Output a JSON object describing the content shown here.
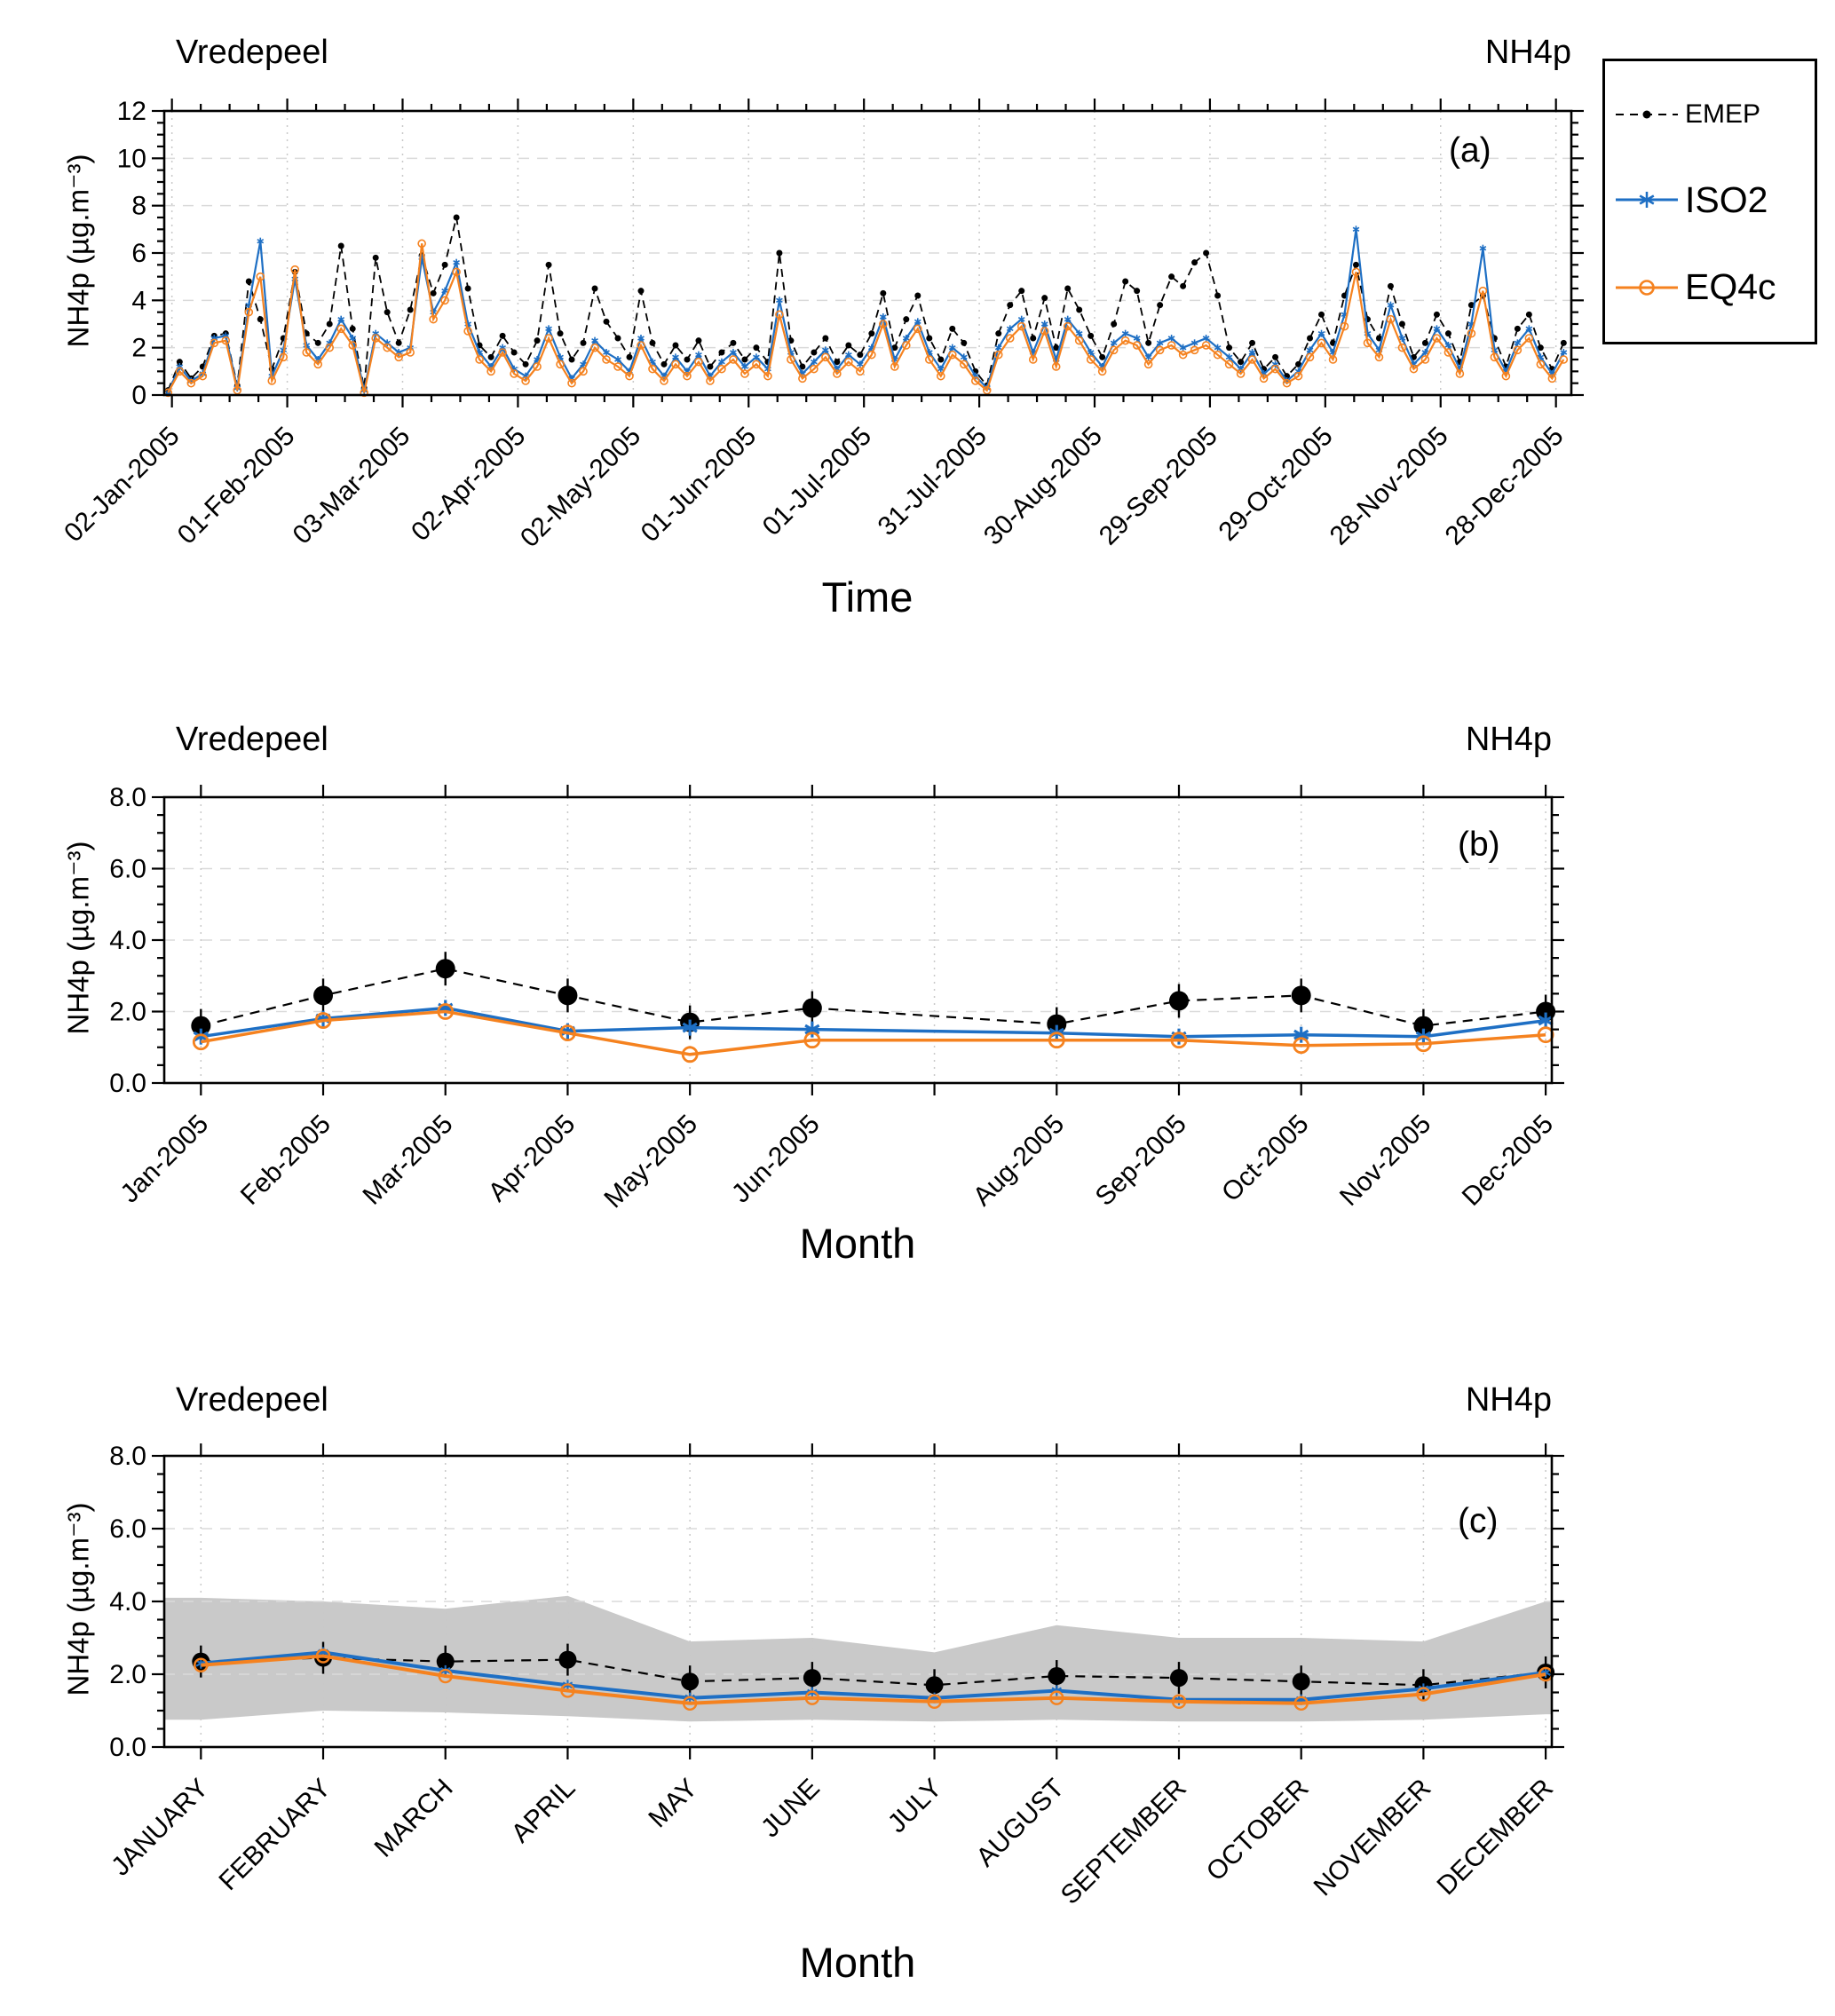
{
  "legend": {
    "entries": [
      {
        "label": "EMEP",
        "color": "#000000",
        "dash": "9 7",
        "marker": "dot"
      },
      {
        "label": "ISO2",
        "color": "#1e6fc4",
        "dash": "",
        "marker": "asterisk"
      },
      {
        "label": "EQ4c",
        "color": "#f5821f",
        "dash": "",
        "marker": "open-circle"
      }
    ]
  },
  "chart_data": [
    {
      "type": "line",
      "id": "a",
      "site": "Vredepeel",
      "species": "NH4p",
      "panel_label": "(a)",
      "xlabel": "Time",
      "ylabel": "NH4p (µg.m⁻³)",
      "xlim": [
        0,
        366
      ],
      "ylim": [
        0,
        12
      ],
      "ytick_major": 2,
      "ytick_minor": 0.5,
      "ydecimals": 0,
      "x_minor_per_interval": 3,
      "hgrid": [
        2,
        4,
        6,
        8,
        10
      ],
      "xticks": [
        {
          "pos": 2,
          "label": "02-Jan-2005"
        },
        {
          "pos": 32,
          "label": "01-Feb-2005"
        },
        {
          "pos": 62,
          "label": "03-Mar-2005"
        },
        {
          "pos": 92,
          "label": "02-Apr-2005"
        },
        {
          "pos": 122,
          "label": "02-May-2005"
        },
        {
          "pos": 152,
          "label": "01-Jun-2005"
        },
        {
          "pos": 182,
          "label": "01-Jul-2005"
        },
        {
          "pos": 212,
          "label": "31-Jul-2005"
        },
        {
          "pos": 242,
          "label": "30-Aug-2005"
        },
        {
          "pos": 272,
          "label": "29-Sep-2005"
        },
        {
          "pos": 302,
          "label": "29-Oct-2005"
        },
        {
          "pos": 332,
          "label": "28-Nov-2005"
        },
        {
          "pos": 362,
          "label": "28-Dec-2005"
        }
      ],
      "series": [
        {
          "name": "EMEP",
          "color": "#000000",
          "dash": "9 6",
          "width": 1.8,
          "marker": "dot",
          "msize": 3.5,
          "day_start": 1,
          "day_step": 3,
          "values": [
            0.2,
            1.4,
            0.7,
            1.2,
            2.5,
            2.6,
            0.4,
            4.8,
            3.2,
            1.1,
            2.4,
            5.2,
            2.6,
            2.2,
            3.0,
            6.3,
            2.8,
            0.3,
            5.8,
            3.5,
            2.2,
            3.6,
            5.9,
            4.3,
            5.5,
            7.5,
            4.5,
            2.1,
            1.6,
            2.5,
            1.8,
            1.3,
            2.3,
            5.5,
            2.6,
            1.5,
            2.2,
            4.5,
            3.1,
            2.4,
            1.6,
            4.4,
            2.2,
            1.3,
            2.1,
            1.5,
            2.3,
            1.2,
            1.8,
            2.2,
            1.5,
            2.0,
            1.4,
            6.0,
            2.3,
            1.2,
            1.8,
            2.4,
            1.4,
            2.1,
            1.7,
            2.6,
            4.3,
            2.0,
            3.2,
            4.2,
            2.4,
            1.5,
            2.8,
            2.2,
            1.0,
            0.4,
            2.6,
            3.8,
            4.4,
            2.4,
            4.1,
            2.0,
            4.5,
            3.6,
            2.5,
            1.6,
            3.0,
            4.8,
            4.4,
            2.2,
            3.8,
            5.0,
            4.6,
            5.6,
            6.0,
            4.2,
            2.0,
            1.4,
            2.2,
            1.1,
            1.6,
            0.8,
            1.3,
            2.4,
            3.4,
            2.2,
            4.2,
            5.5,
            3.2,
            2.4,
            4.6,
            3.0,
            1.6,
            2.2,
            3.4,
            2.6,
            1.4,
            3.8,
            4.2,
            2.4,
            1.2,
            2.8,
            3.4,
            2.0,
            1.1,
            2.2
          ]
        },
        {
          "name": "ISO2",
          "color": "#1e6fc4",
          "dash": "",
          "width": 2.2,
          "marker": "asterisk",
          "msize": 4,
          "day_start": 1,
          "day_step": 3,
          "values": [
            0.1,
            1.2,
            0.6,
            0.9,
            2.4,
            2.5,
            0.3,
            3.8,
            6.5,
            0.8,
            1.9,
            4.9,
            2.1,
            1.5,
            2.2,
            3.2,
            2.4,
            0.2,
            2.6,
            2.2,
            1.8,
            2.0,
            5.8,
            3.5,
            4.4,
            5.6,
            3.0,
            1.8,
            1.2,
            2.0,
            1.1,
            0.8,
            1.5,
            2.8,
            1.6,
            0.7,
            1.3,
            2.3,
            1.8,
            1.5,
            1.0,
            2.4,
            1.4,
            0.8,
            1.6,
            1.0,
            1.7,
            0.8,
            1.4,
            1.8,
            1.2,
            1.6,
            1.1,
            4.0,
            1.8,
            0.9,
            1.4,
            1.9,
            1.1,
            1.7,
            1.3,
            2.0,
            3.3,
            1.5,
            2.4,
            3.1,
            1.8,
            1.1,
            2.0,
            1.6,
            0.8,
            0.3,
            2.0,
            2.8,
            3.2,
            1.8,
            3.0,
            1.5,
            3.2,
            2.6,
            1.8,
            1.2,
            2.2,
            2.6,
            2.4,
            1.6,
            2.2,
            2.4,
            2.0,
            2.2,
            2.4,
            2.0,
            1.6,
            1.1,
            1.8,
            0.9,
            1.3,
            0.6,
            1.0,
            1.9,
            2.6,
            1.8,
            3.4,
            7.0,
            2.6,
            1.9,
            3.8,
            2.4,
            1.3,
            1.8,
            2.8,
            2.1,
            1.1,
            3.0,
            6.2,
            1.9,
            1.0,
            2.2,
            2.8,
            1.6,
            0.9,
            1.8
          ]
        },
        {
          "name": "EQ4c",
          "color": "#f5821f",
          "dash": "",
          "width": 2.2,
          "marker": "ocircle",
          "msize": 4,
          "day_start": 1,
          "day_step": 3,
          "values": [
            0.1,
            1.0,
            0.5,
            0.8,
            2.2,
            2.3,
            0.2,
            3.5,
            5.0,
            0.6,
            1.6,
            5.3,
            1.8,
            1.3,
            2.0,
            2.8,
            2.1,
            0.1,
            2.4,
            2.0,
            1.6,
            1.8,
            6.4,
            3.2,
            4.0,
            5.2,
            2.7,
            1.5,
            1.0,
            1.8,
            0.9,
            0.6,
            1.2,
            2.4,
            1.3,
            0.5,
            1.0,
            2.0,
            1.5,
            1.2,
            0.8,
            2.1,
            1.1,
            0.6,
            1.3,
            0.8,
            1.4,
            0.6,
            1.1,
            1.5,
            0.9,
            1.3,
            0.8,
            3.4,
            1.5,
            0.7,
            1.1,
            1.6,
            0.9,
            1.4,
            1.0,
            1.7,
            3.0,
            1.2,
            2.1,
            2.8,
            1.5,
            0.8,
            1.7,
            1.3,
            0.6,
            0.2,
            1.7,
            2.4,
            2.9,
            1.5,
            2.7,
            1.2,
            2.9,
            2.3,
            1.5,
            1.0,
            1.9,
            2.3,
            2.1,
            1.3,
            1.9,
            2.1,
            1.7,
            1.9,
            2.1,
            1.7,
            1.3,
            0.9,
            1.5,
            0.7,
            1.1,
            0.5,
            0.8,
            1.6,
            2.2,
            1.5,
            2.9,
            5.2,
            2.2,
            1.6,
            3.2,
            2.0,
            1.1,
            1.5,
            2.4,
            1.8,
            0.9,
            2.6,
            4.4,
            1.6,
            0.8,
            1.9,
            2.4,
            1.3,
            0.7,
            1.5
          ]
        }
      ]
    },
    {
      "type": "line",
      "id": "b",
      "site": "Vredepeel",
      "species": "NH4p",
      "panel_label": "(b)",
      "xlabel": "Month",
      "ylabel": "NH4p (µg.m⁻³)",
      "xlim": [
        0.7,
        12.05
      ],
      "ylim": [
        0,
        8
      ],
      "ytick_major": 2,
      "ytick_minor": 0.5,
      "ydecimals": 1,
      "x_minor_per_interval": 0,
      "hgrid": [
        2,
        4,
        6
      ],
      "xticks": [
        {
          "pos": 1,
          "label": "Jan-2005"
        },
        {
          "pos": 2,
          "label": "Feb-2005"
        },
        {
          "pos": 3,
          "label": "Mar-2005"
        },
        {
          "pos": 4,
          "label": "Apr-2005"
        },
        {
          "pos": 5,
          "label": "May-2005"
        },
        {
          "pos": 6,
          "label": "Jun-2005"
        },
        {
          "pos": 7,
          "label": ""
        },
        {
          "pos": 8,
          "label": "Aug-2005"
        },
        {
          "pos": 9,
          "label": "Sep-2005"
        },
        {
          "pos": 10,
          "label": "Oct-2005"
        },
        {
          "pos": 11,
          "label": "Nov-2005"
        },
        {
          "pos": 12,
          "label": "Dec-2005"
        }
      ],
      "series": [
        {
          "name": "EMEP",
          "color": "#000000",
          "dash": "11 8",
          "width": 2.2,
          "marker": "bigdot",
          "msize": 11,
          "values": [
            1.6,
            2.45,
            3.2,
            2.45,
            1.7,
            2.1,
            null,
            1.65,
            2.3,
            2.45,
            1.6,
            2.0
          ]
        },
        {
          "name": "ISO2",
          "color": "#1e6fc4",
          "dash": "",
          "width": 3.5,
          "marker": "asterisk",
          "msize": 9,
          "values": [
            1.3,
            1.8,
            2.1,
            1.45,
            1.55,
            1.5,
            null,
            1.4,
            1.3,
            1.35,
            1.3,
            1.75
          ]
        },
        {
          "name": "EQ4c",
          "color": "#f5821f",
          "dash": "",
          "width": 3.5,
          "marker": "ocircle",
          "msize": 8,
          "values": [
            1.15,
            1.75,
            2.0,
            1.4,
            0.8,
            1.2,
            null,
            1.2,
            1.2,
            1.05,
            1.1,
            1.35
          ]
        }
      ]
    },
    {
      "type": "line",
      "id": "c",
      "site": "Vredepeel",
      "species": "NH4p",
      "panel_label": "(c)",
      "xlabel": "Month",
      "ylabel": "NH4p (µg.m⁻³)",
      "xlim": [
        0.7,
        12.05
      ],
      "ylim": [
        0,
        8
      ],
      "ytick_major": 2,
      "ytick_minor": 0.5,
      "ydecimals": 1,
      "x_minor_per_interval": 0,
      "hgrid": [
        2,
        4,
        6
      ],
      "xticks": [
        {
          "pos": 1,
          "label": "JANUARY"
        },
        {
          "pos": 2,
          "label": "FEBRUARY"
        },
        {
          "pos": 3,
          "label": "MARCH"
        },
        {
          "pos": 4,
          "label": "APRIL"
        },
        {
          "pos": 5,
          "label": "MAY"
        },
        {
          "pos": 6,
          "label": "JUNE"
        },
        {
          "pos": 7,
          "label": "JULY"
        },
        {
          "pos": 8,
          "label": "AUGUST"
        },
        {
          "pos": 9,
          "label": "SEPTEMBER"
        },
        {
          "pos": 10,
          "label": "OCTOBER"
        },
        {
          "pos": 11,
          "label": "NOVEMBER"
        },
        {
          "pos": 12,
          "label": "DECEMBER"
        }
      ],
      "band": {
        "color": "#c9c9c9",
        "upper": [
          4.1,
          4.0,
          3.8,
          4.15,
          2.9,
          3.0,
          2.6,
          3.35,
          3.0,
          3.0,
          2.9,
          4.0
        ],
        "lower": [
          0.75,
          1.0,
          0.95,
          0.85,
          0.7,
          0.75,
          0.7,
          0.75,
          0.7,
          0.7,
          0.75,
          0.9
        ]
      },
      "series": [
        {
          "name": "EMEP",
          "color": "#000000",
          "dash": "11 8",
          "width": 2.2,
          "marker": "bigdot",
          "msize": 10,
          "values": [
            2.35,
            2.45,
            2.35,
            2.4,
            1.8,
            1.9,
            1.7,
            1.95,
            1.9,
            1.8,
            1.7,
            2.05
          ]
        },
        {
          "name": "ISO2",
          "color": "#1e6fc4",
          "dash": "",
          "width": 4,
          "marker": "asterisk",
          "msize": 6,
          "values": [
            2.3,
            2.6,
            2.1,
            1.7,
            1.35,
            1.5,
            1.35,
            1.55,
            1.3,
            1.3,
            1.6,
            2.05
          ]
        },
        {
          "name": "EQ4c",
          "color": "#f5821f",
          "dash": "",
          "width": 4,
          "marker": "ocircle",
          "msize": 7,
          "values": [
            2.25,
            2.5,
            1.95,
            1.55,
            1.2,
            1.35,
            1.25,
            1.35,
            1.25,
            1.2,
            1.45,
            2.0
          ]
        }
      ]
    }
  ]
}
